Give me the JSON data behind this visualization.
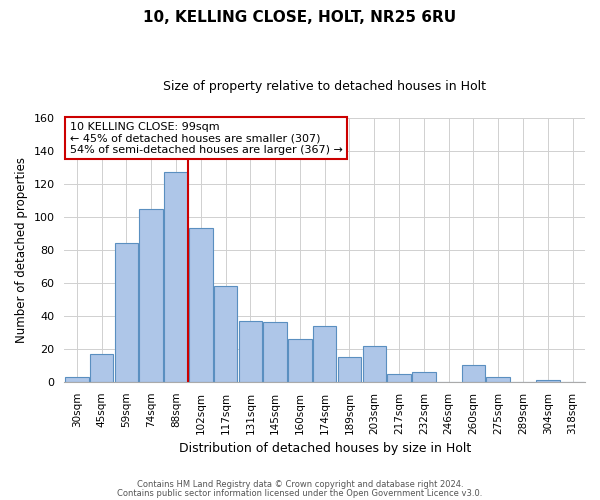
{
  "title": "10, KELLING CLOSE, HOLT, NR25 6RU",
  "subtitle": "Size of property relative to detached houses in Holt",
  "xlabel": "Distribution of detached houses by size in Holt",
  "ylabel": "Number of detached properties",
  "bar_labels": [
    "30sqm",
    "45sqm",
    "59sqm",
    "74sqm",
    "88sqm",
    "102sqm",
    "117sqm",
    "131sqm",
    "145sqm",
    "160sqm",
    "174sqm",
    "189sqm",
    "203sqm",
    "217sqm",
    "232sqm",
    "246sqm",
    "260sqm",
    "275sqm",
    "289sqm",
    "304sqm",
    "318sqm"
  ],
  "bar_values": [
    3,
    17,
    84,
    105,
    127,
    93,
    58,
    37,
    36,
    26,
    34,
    15,
    22,
    5,
    6,
    0,
    10,
    3,
    0,
    1,
    0
  ],
  "bar_color": "#aec6e8",
  "bar_edge_color": "#5a8fc0",
  "vline_color": "#cc0000",
  "vline_x_index": 4.5,
  "ylim": [
    0,
    160
  ],
  "yticks": [
    0,
    20,
    40,
    60,
    80,
    100,
    120,
    140,
    160
  ],
  "annotation_title": "10 KELLING CLOSE: 99sqm",
  "annotation_line1": "← 45% of detached houses are smaller (307)",
  "annotation_line2": "54% of semi-detached houses are larger (367) →",
  "annotation_box_color": "#ffffff",
  "annotation_border_color": "#cc0000",
  "footer_line1": "Contains HM Land Registry data © Crown copyright and database right 2024.",
  "footer_line2": "Contains public sector information licensed under the Open Government Licence v3.0.",
  "background_color": "#ffffff",
  "grid_color": "#d0d0d0",
  "title_fontsize": 11,
  "subtitle_fontsize": 9
}
